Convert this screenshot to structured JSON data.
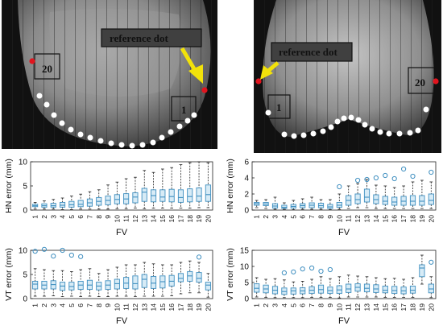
{
  "xray_left": {
    "reference_label": "reference dot",
    "point_first": "1",
    "point_last": "20",
    "dot_count": 20
  },
  "xray_right": {
    "reference_label": "reference dot",
    "point_first": "1",
    "point_last": "20",
    "dot_count": 20
  },
  "colors": {
    "reference_dot": "#e0141e",
    "arrow": "#f2e20a",
    "box_fill": "#d7ebf6",
    "box_stroke": "#3f8fc0",
    "outlier": "#3f8fc0"
  },
  "chart_data": [
    {
      "id": "hn_left",
      "type": "box",
      "xlabel": "FV",
      "ylabel": "HN error (mm)",
      "ylim": [
        0,
        10
      ],
      "yticks": [
        0,
        5,
        10
      ],
      "categories": [
        "1",
        "2",
        "3",
        "4",
        "5",
        "6",
        "7",
        "8",
        "9",
        "10",
        "11",
        "12",
        "13",
        "14",
        "15",
        "16",
        "17",
        "18",
        "19",
        "20"
      ],
      "boxes": [
        [
          0.2,
          0.7,
          0.9,
          1.2,
          1.6
        ],
        [
          0.2,
          0.6,
          0.9,
          1.3,
          1.9
        ],
        [
          0.2,
          0.6,
          0.9,
          1.4,
          2.2
        ],
        [
          0.1,
          0.6,
          1.0,
          1.6,
          2.5
        ],
        [
          0.1,
          0.6,
          1.1,
          1.8,
          2.9
        ],
        [
          0.2,
          0.7,
          1.2,
          2.0,
          3.3
        ],
        [
          0.2,
          0.8,
          1.5,
          2.3,
          3.8
        ],
        [
          0.2,
          1.0,
          1.8,
          2.6,
          4.2
        ],
        [
          0.2,
          1.1,
          2.0,
          2.9,
          5.2
        ],
        [
          0.3,
          1.3,
          2.2,
          3.2,
          5.8
        ],
        [
          0.3,
          1.3,
          2.3,
          3.4,
          6.5
        ],
        [
          0.4,
          1.5,
          2.7,
          3.6,
          6.8
        ],
        [
          0.3,
          1.8,
          3.7,
          4.5,
          8.2
        ],
        [
          0.4,
          1.7,
          3.0,
          4.2,
          7.8
        ],
        [
          0.4,
          1.8,
          2.7,
          4.2,
          8.5
        ],
        [
          0.4,
          1.7,
          2.8,
          4.3,
          8.8
        ],
        [
          0.4,
          1.6,
          2.6,
          4.2,
          9.4
        ],
        [
          0.4,
          1.7,
          2.8,
          4.4,
          9.8
        ],
        [
          0.5,
          1.8,
          2.9,
          4.6,
          10.0
        ],
        [
          0.5,
          1.8,
          3.2,
          5.2,
          9.8
        ]
      ],
      "outliers": []
    },
    {
      "id": "hn_right",
      "type": "box",
      "xlabel": "FV",
      "ylabel": "HN error (mm)",
      "ylim": [
        0,
        6
      ],
      "yticks": [
        0,
        2,
        4,
        6
      ],
      "categories": [
        "1",
        "2",
        "3",
        "4",
        "5",
        "6",
        "7",
        "8",
        "9",
        "10",
        "11",
        "12",
        "13",
        "14",
        "15",
        "16",
        "17",
        "18",
        "19",
        "20"
      ],
      "boxes": [
        [
          0.3,
          0.6,
          0.8,
          0.95,
          1.2
        ],
        [
          0.2,
          0.55,
          0.75,
          0.95,
          1.3
        ],
        [
          0.1,
          0.25,
          0.5,
          0.8,
          1.6
        ],
        [
          0.1,
          0.2,
          0.35,
          0.6,
          0.9
        ],
        [
          0.05,
          0.25,
          0.45,
          0.7,
          1.2
        ],
        [
          0.1,
          0.3,
          0.55,
          0.8,
          1.4
        ],
        [
          0.1,
          0.3,
          0.6,
          0.9,
          1.6
        ],
        [
          0.1,
          0.3,
          0.55,
          0.85,
          1.3
        ],
        [
          0.05,
          0.2,
          0.4,
          0.7,
          1.3
        ],
        [
          0.1,
          0.35,
          0.6,
          0.95,
          2.0
        ],
        [
          0.2,
          0.6,
          1.2,
          1.8,
          3.0
        ],
        [
          0.3,
          0.8,
          1.3,
          2.0,
          3.3
        ],
        [
          0.3,
          1.0,
          1.6,
          2.6,
          3.8
        ],
        [
          0.2,
          0.8,
          1.3,
          1.9,
          3.1
        ],
        [
          0.2,
          0.7,
          1.1,
          1.7,
          3.0
        ],
        [
          0.2,
          0.6,
          1.0,
          1.6,
          2.8
        ],
        [
          0.2,
          0.6,
          1.1,
          1.7,
          3.0
        ],
        [
          0.2,
          0.6,
          1.1,
          1.8,
          3.5
        ],
        [
          0.2,
          0.6,
          1.1,
          1.8,
          3.7
        ],
        [
          0.2,
          0.7,
          1.2,
          2.0,
          3.5
        ]
      ],
      "outliers": [
        [
          10,
          2.9
        ],
        [
          12,
          3.7
        ],
        [
          13,
          3.8
        ],
        [
          14,
          4.0
        ],
        [
          15,
          4.3
        ],
        [
          16,
          3.9
        ],
        [
          17,
          5.1
        ],
        [
          18,
          4.2
        ],
        [
          20,
          4.7
        ]
      ]
    },
    {
      "id": "vt_left",
      "type": "box",
      "xlabel": "FV",
      "ylabel": "VT error (mm)",
      "ylim": [
        0,
        10
      ],
      "yticks": [
        0,
        5,
        10
      ],
      "categories": [
        "1",
        "2",
        "3",
        "4",
        "5",
        "6",
        "7",
        "8",
        "9",
        "10",
        "11",
        "12",
        "13",
        "14",
        "15",
        "16",
        "17",
        "18",
        "19",
        "20"
      ],
      "boxes": [
        [
          0.5,
          2.0,
          3.0,
          3.6,
          6.2
        ],
        [
          0.5,
          2.0,
          2.8,
          3.6,
          6.0
        ],
        [
          0.6,
          2.0,
          2.9,
          3.7,
          5.8
        ],
        [
          0.4,
          1.7,
          2.6,
          3.4,
          5.8
        ],
        [
          0.5,
          1.8,
          2.5,
          3.4,
          5.6
        ],
        [
          0.4,
          1.9,
          2.8,
          3.6,
          6.0
        ],
        [
          0.5,
          1.9,
          2.8,
          3.8,
          6.2
        ],
        [
          0.4,
          1.8,
          2.6,
          3.4,
          5.2
        ],
        [
          0.4,
          1.9,
          2.8,
          3.7,
          6.0
        ],
        [
          0.5,
          2.0,
          3.1,
          4.0,
          6.5
        ],
        [
          0.5,
          2.1,
          3.2,
          4.4,
          7.0
        ],
        [
          0.4,
          2.0,
          3.1,
          4.7,
          7.0
        ],
        [
          0.5,
          2.3,
          4.0,
          5.0,
          7.5
        ],
        [
          0.5,
          2.1,
          3.2,
          4.6,
          7.2
        ],
        [
          0.5,
          2.2,
          3.5,
          4.7,
          7.0
        ],
        [
          0.6,
          2.6,
          3.6,
          4.8,
          7.0
        ],
        [
          1.0,
          3.5,
          4.2,
          5.2,
          7.5
        ],
        [
          1.2,
          3.6,
          4.7,
          5.6,
          7.8
        ],
        [
          1.2,
          3.4,
          4.2,
          5.4,
          7.5
        ],
        [
          0.3,
          1.8,
          2.8,
          3.4,
          5.2
        ]
      ],
      "outliers": [
        [
          1,
          9.8
        ],
        [
          2,
          10.2
        ],
        [
          3,
          8.8
        ],
        [
          4,
          10.0
        ],
        [
          5,
          9.0
        ],
        [
          6,
          8.7
        ],
        [
          19,
          8.6
        ]
      ]
    },
    {
      "id": "vt_right",
      "type": "box",
      "xlabel": "FV",
      "ylabel": "VT error (mm)",
      "ylim": [
        0,
        15
      ],
      "yticks": [
        0,
        5,
        10,
        15
      ],
      "categories": [
        "1",
        "2",
        "3",
        "4",
        "5",
        "6",
        "7",
        "8",
        "9",
        "10",
        "11",
        "12",
        "13",
        "14",
        "15",
        "16",
        "17",
        "18",
        "19",
        "20"
      ],
      "boxes": [
        [
          0.5,
          2.0,
          3.2,
          4.6,
          6.5
        ],
        [
          0.4,
          1.8,
          3.0,
          4.2,
          6.0
        ],
        [
          0.3,
          1.5,
          2.6,
          3.8,
          6.2
        ],
        [
          0.3,
          1.3,
          2.2,
          3.3,
          5.8
        ],
        [
          0.3,
          1.4,
          2.4,
          3.3,
          5.2
        ],
        [
          0.3,
          1.5,
          2.4,
          3.4,
          5.4
        ],
        [
          0.4,
          1.6,
          2.6,
          3.7,
          6.0
        ],
        [
          0.4,
          1.7,
          2.8,
          4.2,
          6.8
        ],
        [
          0.4,
          1.6,
          2.5,
          3.6,
          6.2
        ],
        [
          0.2,
          1.6,
          2.7,
          4.0,
          6.8
        ],
        [
          0.5,
          1.9,
          3.0,
          4.5,
          7.3
        ],
        [
          0.5,
          2.3,
          3.5,
          4.6,
          7.0
        ],
        [
          0.5,
          2.1,
          3.2,
          4.5,
          6.8
        ],
        [
          0.5,
          1.9,
          3.0,
          4.3,
          6.5
        ],
        [
          0.4,
          1.8,
          2.6,
          3.9,
          6.2
        ],
        [
          0.4,
          1.6,
          2.5,
          3.8,
          6.3
        ],
        [
          0.4,
          1.5,
          2.4,
          3.6,
          6.0
        ],
        [
          0.4,
          1.7,
          2.6,
          3.9,
          6.5
        ],
        [
          4.5,
          6.8,
          9.5,
          10.5,
          13.5
        ],
        [
          0.3,
          1.8,
          3.0,
          4.5,
          6.8
        ]
      ],
      "outliers": [
        [
          4,
          8.0
        ],
        [
          5,
          8.3
        ],
        [
          6,
          9.2
        ],
        [
          7,
          9.5
        ],
        [
          8,
          8.5
        ],
        [
          9,
          9.0
        ],
        [
          20,
          11.3
        ]
      ]
    }
  ]
}
